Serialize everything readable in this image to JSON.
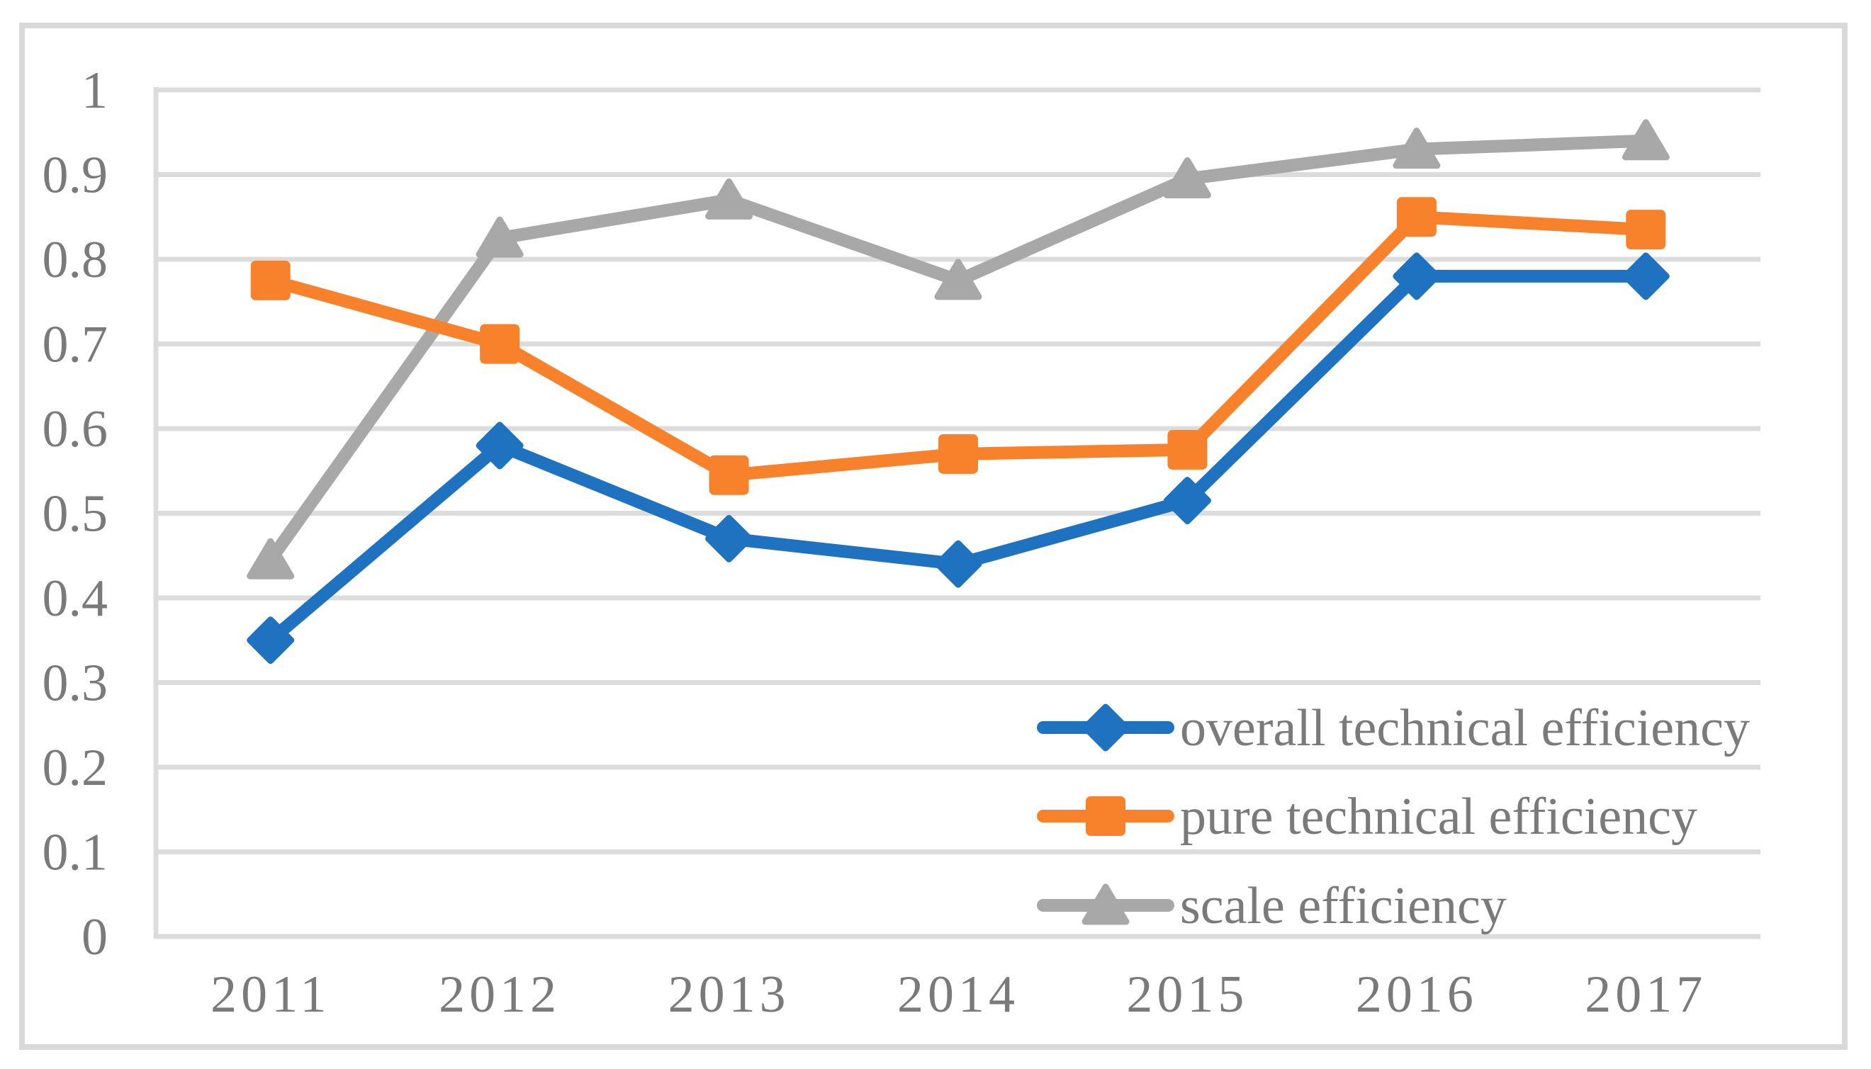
{
  "figure": {
    "background_color": "#ffffff",
    "border_color": "#d9d9d9"
  },
  "chart_data": {
    "type": "line",
    "title": "",
    "xlabel": "",
    "ylabel": "",
    "categories": [
      "2011",
      "2012",
      "2013",
      "2014",
      "2015",
      "2016",
      "2017"
    ],
    "series": [
      {
        "name": "overall technical efficiency",
        "color": "#1f72bf",
        "marker": "diamond",
        "values": [
          0.35,
          0.58,
          0.47,
          0.44,
          0.515,
          0.78,
          0.78
        ]
      },
      {
        "name": "pure technical efficiency",
        "color": "#f8812c",
        "marker": "square",
        "values": [
          0.775,
          0.7,
          0.545,
          0.57,
          0.575,
          0.85,
          0.835
        ]
      },
      {
        "name": "scale efficiency",
        "color": "#a8a8a8",
        "marker": "triangle",
        "values": [
          0.445,
          0.825,
          0.87,
          0.775,
          0.895,
          0.93,
          0.94
        ]
      }
    ],
    "ylim": [
      0,
      1
    ],
    "ytick_step": 0.1,
    "ytick_labels": [
      "0",
      "0.1",
      "0.2",
      "0.3",
      "0.4",
      "0.5",
      "0.6",
      "0.7",
      "0.8",
      "0.9",
      "1"
    ],
    "grid": true,
    "legend_position": "inside-lower-right",
    "axis_text_color": "#7a7a7a",
    "gridline_color": "#dcdcdc",
    "z_order": [
      "scale efficiency",
      "overall technical efficiency",
      "pure technical efficiency"
    ]
  }
}
